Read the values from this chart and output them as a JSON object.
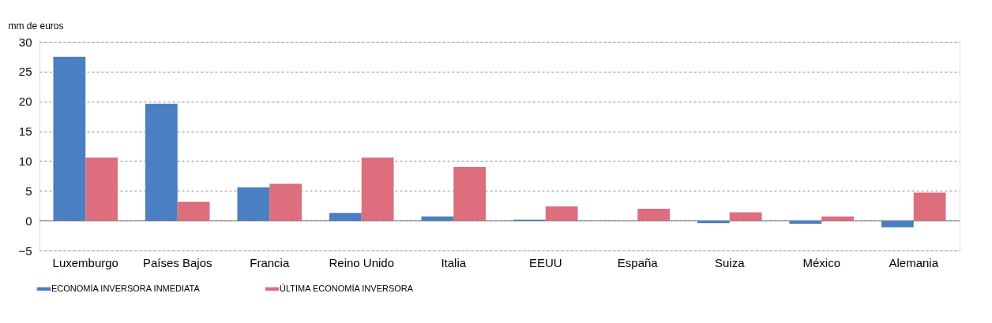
{
  "chart_data": {
    "type": "bar",
    "ylabel": "mm de euros",
    "categories": [
      "Luxemburgo",
      "Países Bajos",
      "Francia",
      "Reino Unido",
      "Italia",
      "EEUU",
      "España",
      "Suiza",
      "México",
      "Alemania"
    ],
    "series": [
      {
        "name": "ECONOMÍA INVERSORA INMEDIATA",
        "color": "#4a7fc1",
        "values": [
          27.5,
          19.6,
          5.6,
          1.3,
          0.7,
          0.2,
          0,
          -0.4,
          -0.5,
          -1.1
        ]
      },
      {
        "name": "ÚLTIMA ECONOMÍA INVERSORA",
        "color": "#dc6e7e",
        "values": [
          10.6,
          3.2,
          6.2,
          10.6,
          9.0,
          2.4,
          2.0,
          1.4,
          0.7,
          4.7
        ]
      }
    ],
    "ylim": [
      -5,
      30
    ],
    "yticks": [
      -5,
      0,
      5,
      10,
      15,
      20,
      25,
      30
    ],
    "grid": "y",
    "legend": "bottom left"
  }
}
